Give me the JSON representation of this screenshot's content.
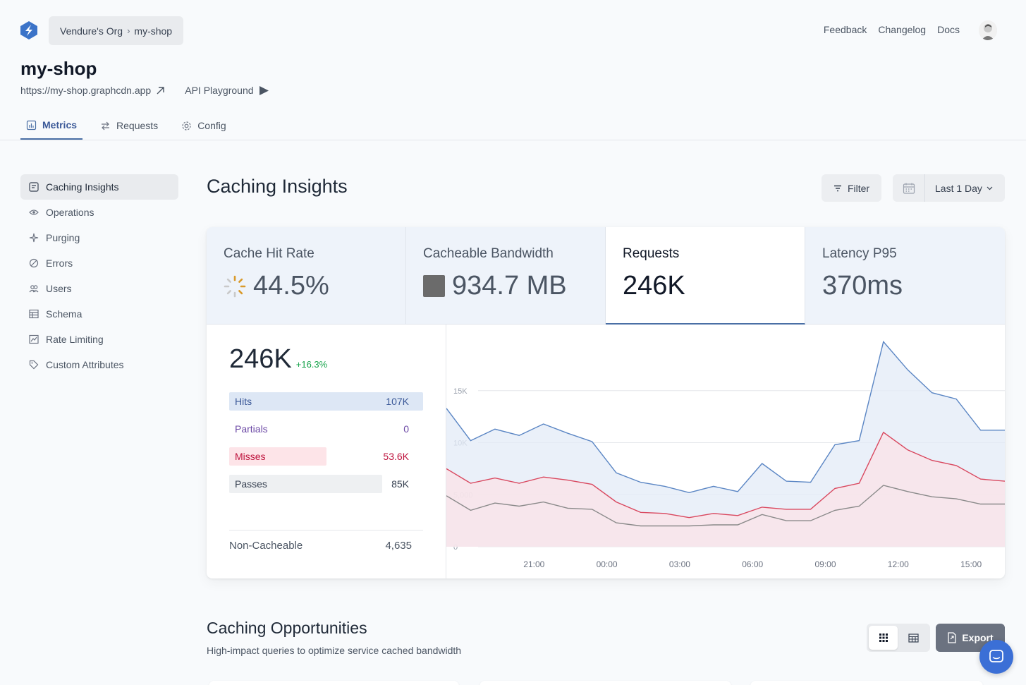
{
  "header": {
    "org": "Vendure's Org",
    "project": "my-shop",
    "links": [
      "Feedback",
      "Changelog",
      "Docs"
    ]
  },
  "page": {
    "title": "my-shop",
    "url": "https://my-shop.graphcdn.app",
    "playground": "API Playground"
  },
  "tabs": [
    {
      "label": "Metrics",
      "icon": "bar-chart-icon",
      "active": true
    },
    {
      "label": "Requests",
      "icon": "arrows-exchange-icon",
      "active": false
    },
    {
      "label": "Config",
      "icon": "gear-icon",
      "active": false
    }
  ],
  "sidebar": {
    "items": [
      {
        "label": "Caching Insights",
        "icon": "insights-icon",
        "active": true
      },
      {
        "label": "Operations",
        "icon": "eye-icon"
      },
      {
        "label": "Purging",
        "icon": "sparkle-icon"
      },
      {
        "label": "Errors",
        "icon": "slash-circle-icon"
      },
      {
        "label": "Users",
        "icon": "users-icon"
      },
      {
        "label": "Schema",
        "icon": "table-icon"
      },
      {
        "label": "Rate Limiting",
        "icon": "speed-icon"
      },
      {
        "label": "Custom Attributes",
        "icon": "tag-icon"
      }
    ]
  },
  "main": {
    "title": "Caching Insights",
    "filter_label": "Filter",
    "range_label": "Last 1 Day"
  },
  "stats": [
    {
      "label": "Cache Hit Rate",
      "value": "44.5%",
      "active": false
    },
    {
      "label": "Cacheable Bandwidth",
      "value": "934.7 MB",
      "active": false
    },
    {
      "label": "Requests",
      "value": "246K",
      "active": true
    },
    {
      "label": "Latency P95",
      "value": "370ms",
      "active": false
    }
  ],
  "breakdown": {
    "total": "246K",
    "delta": "+16.3%",
    "rows": [
      {
        "label": "Hits",
        "value": "107K",
        "fraction": 1.0,
        "color": "#dde7f5",
        "text": "#3b5998"
      },
      {
        "label": "Partials",
        "value": "0",
        "fraction": 0.0,
        "color": "#ffffff",
        "text": "#6d4aa6"
      },
      {
        "label": "Misses",
        "value": "53.6K",
        "fraction": 0.5,
        "color": "#fde4e8",
        "text": "#be123c"
      },
      {
        "label": "Passes",
        "value": "85K",
        "fraction": 0.79,
        "color": "#eef0f2",
        "text": "#374151"
      }
    ],
    "non_cacheable_label": "Non-Cacheable",
    "non_cacheable_value": "4,635"
  },
  "chart_data": {
    "type": "area",
    "x_ticks": [
      "21:00",
      "00:00",
      "03:00",
      "06:00",
      "09:00",
      "12:00",
      "15:00"
    ],
    "y_ticks": [
      "0",
      "5,000",
      "10K",
      "15K"
    ],
    "ylim": [
      0,
      20000
    ],
    "series": [
      {
        "color": "#5b86c4",
        "fill": "#e3ebf7",
        "values": [
          13300,
          10200,
          11300,
          10700,
          11800,
          10900,
          10100,
          7100,
          6200,
          5800,
          5200,
          5800,
          5300,
          8000,
          6300,
          6200,
          9800,
          10200,
          19700,
          17000,
          14800,
          14200,
          11200,
          11200
        ]
      },
      {
        "color": "#d9485f",
        "fill": "#fbe3e7",
        "values": [
          7500,
          6100,
          6600,
          6100,
          6700,
          6400,
          6000,
          4300,
          3300,
          3200,
          2800,
          3200,
          3000,
          3800,
          3600,
          3600,
          5600,
          6100,
          11000,
          9300,
          8300,
          7800,
          6500,
          6300
        ]
      },
      {
        "color": "#8a8a8a",
        "fill": "none",
        "values": [
          4900,
          3500,
          4200,
          3900,
          4300,
          3700,
          3600,
          2300,
          2000,
          2000,
          2000,
          2100,
          2100,
          3100,
          2500,
          2500,
          3500,
          3900,
          5900,
          5300,
          4800,
          4600,
          4100,
          4100
        ]
      }
    ]
  },
  "opportunities": {
    "title": "Caching Opportunities",
    "subtitle": "High-impact queries to optimize service cached bandwidth",
    "export_label": "Export"
  }
}
